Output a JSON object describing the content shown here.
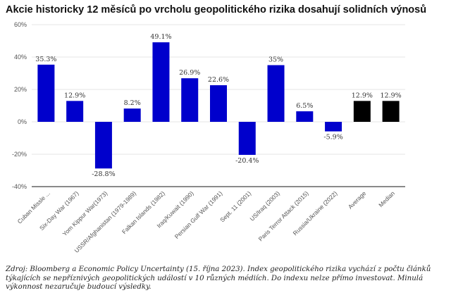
{
  "chart_data": {
    "type": "bar",
    "title": "Akcie historicky 12 měsíců po vrcholu geopolitického rizika dosahují solidních výnosů",
    "categories": [
      "Cuban Missle ...",
      "Six-Day War (1967)",
      "Yom Kippur War(1973)",
      "USSR/Afghanistan (1979-1989)",
      "Falkan Islands (1982)",
      "Iraq/Kuwait (1990)",
      "Persian Gulf War (1991)",
      "Sept. 11 (2001)",
      "US/Iraq (2003)",
      "Paris Terror Attack (2015)",
      "Russia/Ukraine (2022)",
      "Average",
      "Median"
    ],
    "values": [
      35.3,
      12.9,
      -28.8,
      8.2,
      49.1,
      26.9,
      22.6,
      -20.4,
      35,
      6.5,
      -5.9,
      12.9,
      12.9
    ],
    "labels": [
      "35.3%",
      "12.9%",
      "-28.8%",
      "8.2%",
      "49.1%",
      "26.9%",
      "22.6%",
      "-20.4%",
      "35%",
      "6.5%",
      "-5.9%",
      "12.9%",
      "12.9%"
    ],
    "colors": [
      "#0000cc",
      "#0000cc",
      "#0000cc",
      "#0000cc",
      "#0000cc",
      "#0000cc",
      "#0000cc",
      "#0000cc",
      "#0000cc",
      "#0000cc",
      "#0000cc",
      "#000000",
      "#000000"
    ],
    "yticks": [
      "60%",
      "40%",
      "20%",
      "0%",
      "-20%",
      "-40%"
    ],
    "ytick_values": [
      60,
      40,
      20,
      0,
      -20,
      -40
    ],
    "ylim": [
      -40,
      60
    ],
    "grid": true,
    "xlabel": "",
    "ylabel": ""
  },
  "note": "Zdroj: Bloomberg a Economic Policy Uncertainty (15. října 2023). Index geopolitického rizika vychází z počtu článků týkajících se nepříznivých geopolitických událostí v 10 různých médiích. Do indexu nelze přímo investovat. Minulá výkonnost nezaručuje budoucí výsledky."
}
